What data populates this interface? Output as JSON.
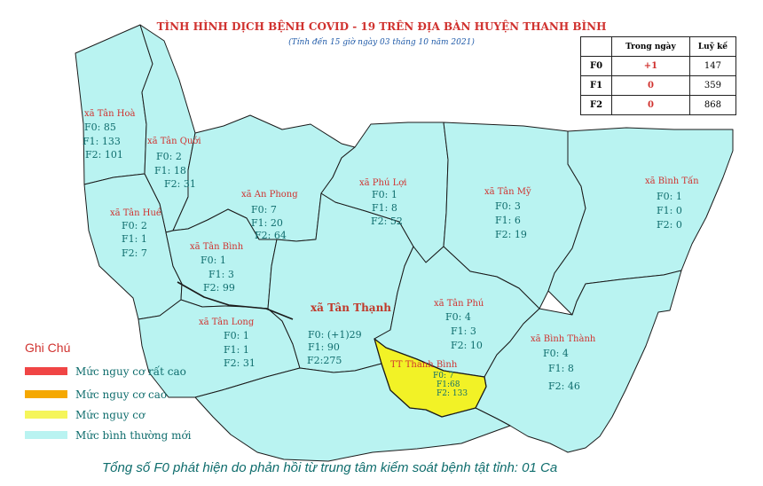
{
  "title": "TÌNH HÌNH DỊCH BỆNH COVID - 19 TRÊN ĐỊA BÀN HUYỆN THANH BÌNH",
  "subtitle": "(Tính đến 15 giờ ngày 03 tháng 10 năm 2021)",
  "summary_table": {
    "headers": [
      "Trong ngày",
      "Luỹ kế"
    ],
    "rows": [
      {
        "label": "F0",
        "today": "+1",
        "total": "147"
      },
      {
        "label": "F1",
        "today": "0",
        "total": "359"
      },
      {
        "label": "F2",
        "today": "0",
        "total": "868"
      }
    ]
  },
  "communes": {
    "tan_hoa": {
      "name": "xã Tân Hoà",
      "f0": "F0: 85",
      "f1": "F1: 133",
      "f2": "F2: 101"
    },
    "tan_quoi": {
      "name": "xã Tân Quới",
      "f0": "F0: 2",
      "f1": "F1: 18",
      "f2": "F2: 31"
    },
    "tan_hue": {
      "name": "xã Tân Huề",
      "f0": "F0: 2",
      "f1": "F1: 1",
      "f2": "F2: 7"
    },
    "an_phong": {
      "name": "xã An Phong",
      "f0": "F0: 7",
      "f1": "F1: 20",
      "f2": "F2: 64"
    },
    "tan_binh": {
      "name": "xã Tân Bình",
      "f0": "F0: 1",
      "f1": "F1: 3",
      "f2": "F2: 99"
    },
    "tan_long": {
      "name": "xã Tân Long",
      "f0": "F0: 1",
      "f1": "F1: 1",
      "f2": "F2: 31"
    },
    "phu_loi": {
      "name": "xã Phú Lợi",
      "f0": "F0: 1",
      "f1": "F1: 8",
      "f2": "F2: 52"
    },
    "tan_my": {
      "name": "xã Tân Mỹ",
      "f0": "F0: 3",
      "f1": "F1: 6",
      "f2": "F2: 19"
    },
    "binh_tan": {
      "name": "xã Bình Tấn",
      "f0": "F0: 1",
      "f1": "F1: 0",
      "f2": "F2: 0"
    },
    "tan_thanh": {
      "name": "xã Tân Thạnh",
      "f0": "F0: (+1)29",
      "f1": "F1: 90",
      "f2": "F2:275"
    },
    "tan_phu": {
      "name": "xã Tân Phú",
      "f0": "F0: 4",
      "f1": "F1: 3",
      "f2": "F2: 10"
    },
    "tt_thanh_binh": {
      "name": "TT Thanh Bình",
      "f0": "F0: 7",
      "f1": "F1:68",
      "f2": "F2: 133"
    },
    "binh_thanh": {
      "name": "xã Bình Thành",
      "f0": "F0: 4",
      "f1": "F1: 8",
      "f2": "F2: 46"
    }
  },
  "legend": {
    "title": "Ghi Chú",
    "items": [
      {
        "label": "Mức  nguy cơ rất cao",
        "color": "#f04545"
      },
      {
        "label": "Mức  nguy cơ cao",
        "color": "#f5a800"
      },
      {
        "label": "Mức  nguy cơ",
        "color": "#f5f55a"
      },
      {
        "label": "Mức  bình thường mới",
        "color": "#b9f3f1"
      }
    ]
  },
  "footer": "Tổng số F0 phát hiện do phản hồi từ trung tâm kiểm soát bệnh tật tỉnh: 01 Ca",
  "colors": {
    "normal": "#b9f3f1",
    "risk": "#f2f226",
    "border": "#1a1a1a",
    "label_red": "#d0322f",
    "label_teal": "#0f6d6d"
  }
}
